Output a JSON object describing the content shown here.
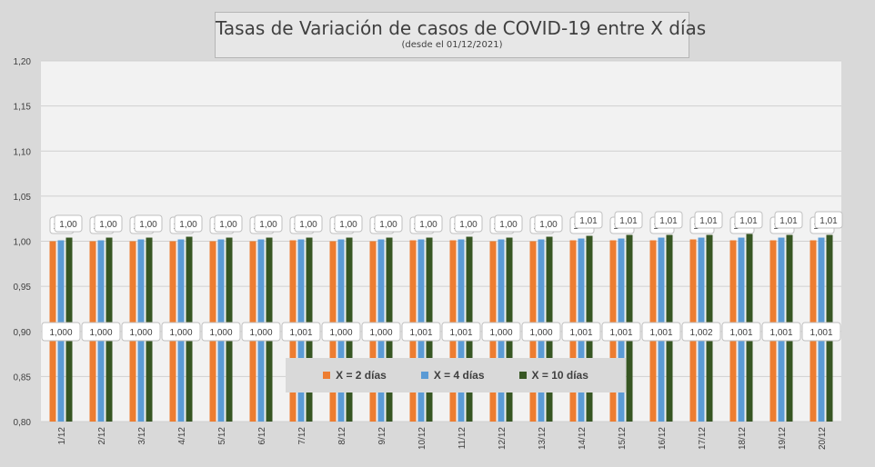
{
  "chart_data": {
    "type": "bar",
    "title": "Tasas de Variación de casos de COVID-19 entre X días",
    "subtitle": "(desde el 01/12/2021)",
    "xlabel": "",
    "ylabel": "",
    "ylim": [
      0.8,
      1.2
    ],
    "yticks": [
      "0,80",
      "0,85",
      "0,90",
      "0,95",
      "1,00",
      "1,05",
      "1,10",
      "1,15",
      "1,20"
    ],
    "ytick_values": [
      0.8,
      0.85,
      0.9,
      0.95,
      1.0,
      1.05,
      1.1,
      1.15,
      1.2
    ],
    "legend_position": "bottom",
    "categories": [
      "1/12",
      "2/12",
      "3/12",
      "4/12",
      "5/12",
      "6/12",
      "7/12",
      "8/12",
      "9/12",
      "10/12",
      "11/12",
      "12/12",
      "13/12",
      "14/12",
      "15/12",
      "16/12",
      "17/12",
      "18/12",
      "19/12",
      "20/12"
    ],
    "series": [
      {
        "name": "X = 2 días",
        "color": "#ed7d31",
        "values": [
          1.0,
          1.0,
          1.0,
          1.0,
          1.0,
          1.0,
          1.001,
          1.0,
          1.0,
          1.001,
          1.001,
          1.0,
          1.0,
          1.001,
          1.001,
          1.001,
          1.002,
          1.001,
          1.001,
          1.001
        ],
        "labels": [
          "1,000",
          "1,000",
          "1,000",
          "1,000",
          "1,000",
          "1,000",
          "1,001",
          "1,000",
          "1,000",
          "1,001",
          "1,001",
          "1,000",
          "1,000",
          "1,001",
          "1,001",
          "1,001",
          "1,002",
          "1,001",
          "1,001",
          "1,001"
        ]
      },
      {
        "name": "X = 4 días",
        "color": "#5b9bd5",
        "values": [
          1.001,
          1.001,
          1.002,
          1.002,
          1.002,
          1.002,
          1.002,
          1.002,
          1.002,
          1.002,
          1.002,
          1.002,
          1.002,
          1.003,
          1.003,
          1.004,
          1.004,
          1.004,
          1.004,
          1.004
        ],
        "labels": [
          "1",
          "1",
          "1",
          "1",
          "1",
          "1",
          "1",
          "1",
          "1",
          "1",
          "1",
          "1",
          "1",
          "1",
          "1",
          "1",
          "1",
          "1",
          "1",
          "1"
        ]
      },
      {
        "name": "X = 10 días",
        "color": "#375623",
        "values": [
          1.004,
          1.004,
          1.004,
          1.005,
          1.004,
          1.004,
          1.004,
          1.004,
          1.004,
          1.004,
          1.005,
          1.004,
          1.005,
          1.006,
          1.007,
          1.007,
          1.007,
          1.008,
          1.007,
          1.007
        ],
        "labels": [
          "1,00",
          "1,00",
          "1,00",
          "1,00",
          "1,00",
          "1,00",
          "1,00",
          "1,00",
          "1,00",
          "1,00",
          "1,00",
          "1,00",
          "1,00",
          "1,01",
          "1,01",
          "1,01",
          "1,01",
          "1,01",
          "1,01",
          "1,01"
        ]
      }
    ]
  }
}
